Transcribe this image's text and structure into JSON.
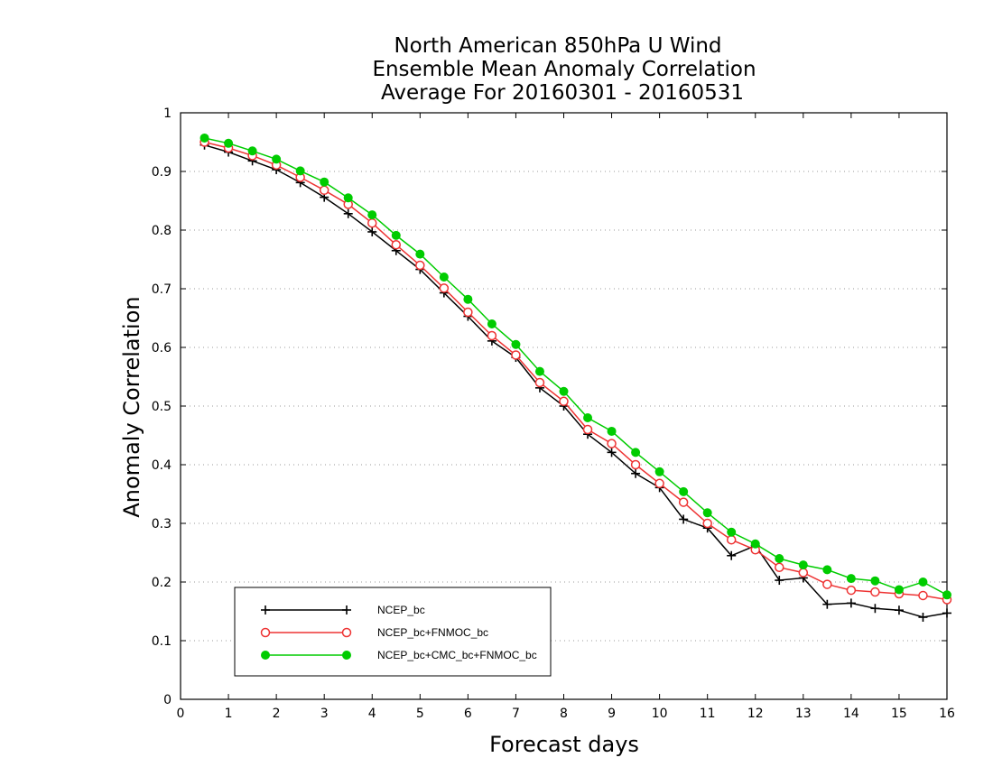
{
  "chart_data": {
    "type": "line",
    "title": [
      "North American 850hPa U Wind",
      "Ensemble Mean Anomaly Correlation",
      "Average For 20160301 - 20160531"
    ],
    "xlabel": "Forecast days",
    "ylabel": "Anomaly Correlation",
    "xlim": [
      0,
      16
    ],
    "ylim": [
      0,
      1
    ],
    "xticks": [
      0,
      1,
      2,
      3,
      4,
      5,
      6,
      7,
      8,
      9,
      10,
      11,
      12,
      13,
      14,
      15,
      16
    ],
    "xtick_labels": [
      "0",
      "1",
      "2",
      "3",
      "4",
      "5",
      "6",
      "7",
      "8",
      "9",
      "10",
      "11",
      "12",
      "13",
      "14",
      "15",
      "16"
    ],
    "yticks": [
      0,
      0.1,
      0.2,
      0.3,
      0.4,
      0.5,
      0.6,
      0.7,
      0.8,
      0.9,
      1
    ],
    "ytick_labels": [
      "0",
      "0.1",
      "0.2",
      "0.3",
      "0.4",
      "0.5",
      "0.6",
      "0.7",
      "0.8",
      "0.9",
      "1"
    ],
    "grid": "horizontal dotted",
    "legend_position": "bottom-left",
    "x": [
      0.5,
      1,
      1.5,
      2,
      2.5,
      3,
      3.5,
      4,
      4.5,
      5,
      5.5,
      6,
      6.5,
      7,
      7.5,
      8,
      8.5,
      9,
      9.5,
      10,
      10.5,
      11,
      11.5,
      12,
      12.5,
      13,
      13.5,
      14,
      14.5,
      15,
      15.5,
      16
    ],
    "series": [
      {
        "name": "NCEP_bc",
        "color": "#000000",
        "marker": "plus",
        "values": [
          0.945,
          0.933,
          0.918,
          0.903,
          0.881,
          0.856,
          0.828,
          0.797,
          0.765,
          0.733,
          0.693,
          0.653,
          0.611,
          0.583,
          0.531,
          0.5,
          0.452,
          0.421,
          0.385,
          0.361,
          0.307,
          0.292,
          0.245,
          0.262,
          0.203,
          0.207,
          0.162,
          0.164,
          0.155,
          0.152,
          0.14,
          0.147
        ]
      },
      {
        "name": "NCEP_bc+FNMOC_bc",
        "color": "#ee3333",
        "marker": "open-circle",
        "values": [
          0.95,
          0.94,
          0.927,
          0.911,
          0.89,
          0.868,
          0.844,
          0.812,
          0.775,
          0.74,
          0.701,
          0.66,
          0.62,
          0.587,
          0.54,
          0.508,
          0.46,
          0.436,
          0.4,
          0.368,
          0.336,
          0.3,
          0.272,
          0.255,
          0.225,
          0.216,
          0.196,
          0.186,
          0.183,
          0.18,
          0.177,
          0.17
        ]
      },
      {
        "name": "NCEP_bc+CMC_bc+FNMOC_bc",
        "color": "#00cc00",
        "marker": "filled-circle",
        "values": [
          0.957,
          0.948,
          0.935,
          0.921,
          0.901,
          0.882,
          0.855,
          0.826,
          0.791,
          0.759,
          0.72,
          0.682,
          0.64,
          0.605,
          0.559,
          0.525,
          0.48,
          0.457,
          0.421,
          0.388,
          0.354,
          0.318,
          0.285,
          0.265,
          0.24,
          0.229,
          0.221,
          0.206,
          0.202,
          0.187,
          0.2,
          0.178
        ]
      }
    ]
  }
}
